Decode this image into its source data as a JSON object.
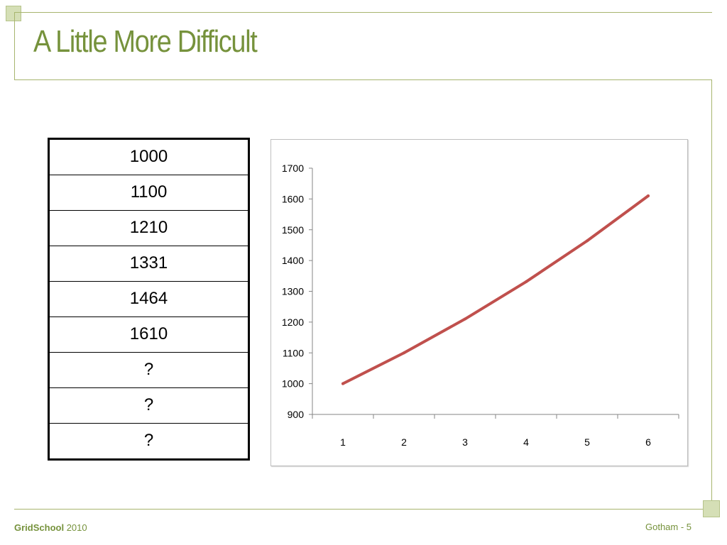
{
  "slide": {
    "title": "A Little More Difficult",
    "footer_brand": "GridSchool",
    "footer_year": "2010",
    "footer_right": "Gotham - 5",
    "accent_color": "#76923c",
    "decor_color": "#a7b56e"
  },
  "table": {
    "rows": [
      "1000",
      "1100",
      "1210",
      "1331",
      "1464",
      "1610",
      "?",
      "?",
      "?"
    ]
  },
  "chart_data": {
    "type": "line",
    "x": [
      1,
      2,
      3,
      4,
      5,
      6
    ],
    "series": [
      {
        "values": [
          1000,
          1100,
          1210,
          1331,
          1464,
          1610
        ],
        "color": "#c0504d"
      }
    ],
    "title": "",
    "xlabel": "",
    "ylabel": "",
    "ylim": [
      900,
      1700
    ],
    "yticks": [
      900,
      1000,
      1100,
      1200,
      1300,
      1400,
      1500,
      1600,
      1700
    ],
    "xticks": [
      "1",
      "2",
      "3",
      "4",
      "5",
      "6"
    ],
    "grid": false,
    "legend": "none"
  }
}
